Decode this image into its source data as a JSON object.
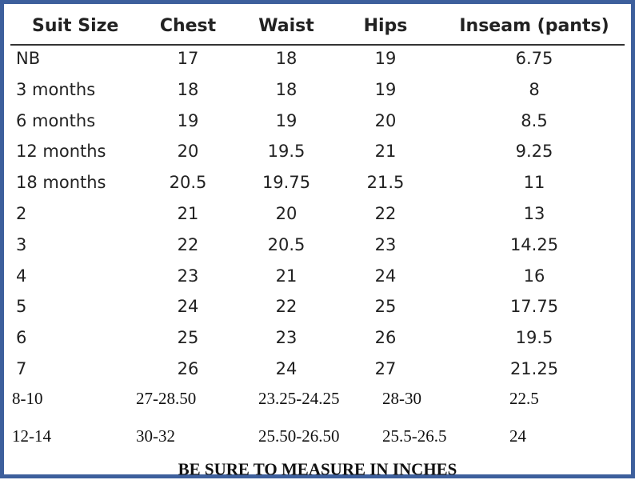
{
  "table": {
    "header": [
      "Suit Size",
      "Chest",
      "Waist",
      "Hips",
      "Inseam (pants)"
    ],
    "rows": [
      [
        "NB",
        "17",
        "18",
        "19",
        "6.75"
      ],
      [
        "3 months",
        "18",
        "18",
        "19",
        "8"
      ],
      [
        "6 months",
        "19",
        "19",
        "20",
        "8.5"
      ],
      [
        "12 months",
        "20",
        "19.5",
        "21",
        "9.25"
      ],
      [
        "18 months",
        "20.5",
        "19.75",
        "21.5",
        "11"
      ],
      [
        "2",
        "21",
        "20",
        "22",
        "13"
      ],
      [
        "3",
        "22",
        "20.5",
        "23",
        "14.25"
      ],
      [
        "4",
        "23",
        "21",
        "24",
        "16"
      ],
      [
        "5",
        "24",
        "22",
        "25",
        "17.75"
      ],
      [
        "6",
        "25",
        "23",
        "26",
        "19.5"
      ],
      [
        "7",
        "26",
        "24",
        "27",
        "21.25"
      ],
      [
        "8-10",
        "27-28.50",
        "23.25-24.25",
        "28-30",
        "22.5"
      ],
      [
        "12-14",
        "30-32",
        "25.50-26.50",
        "25.5-26.5",
        "24"
      ]
    ],
    "footer": "BE SURE TO MEASURE IN INCHES"
  }
}
